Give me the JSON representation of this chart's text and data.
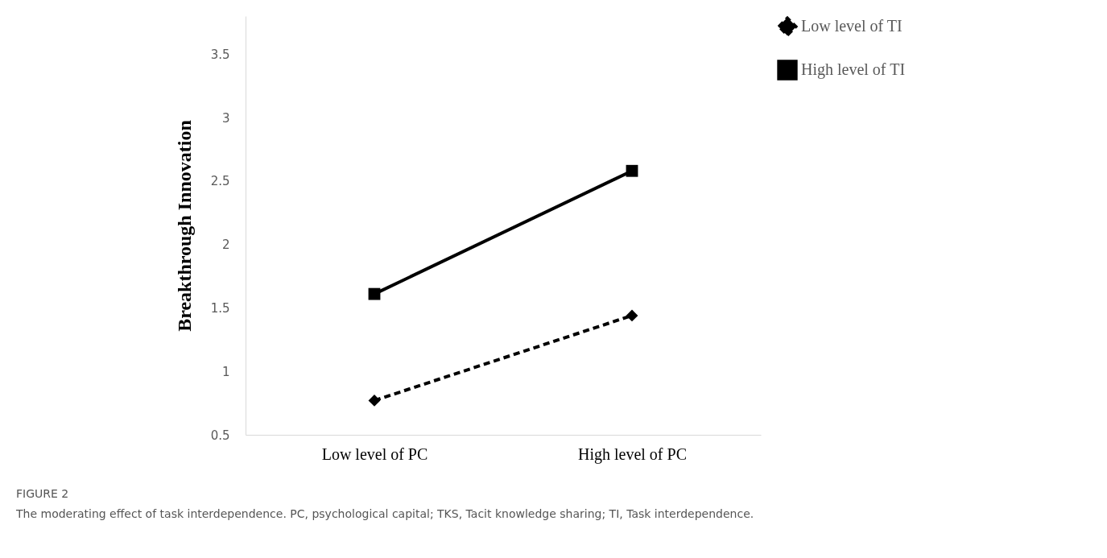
{
  "chart_data": {
    "type": "line",
    "ylabel": "Breakthrough Innovation",
    "categories": [
      "Low level of PC",
      "High level of PC"
    ],
    "series": [
      {
        "name": "Low level of TI",
        "color": "#000000",
        "values": [
          0.77,
          1.44
        ],
        "marker": "diamond",
        "line_style": "dashed"
      },
      {
        "name": "High level of TI",
        "color": "#000000",
        "values": [
          1.61,
          2.58
        ],
        "marker": "square",
        "line_style": "solid"
      }
    ],
    "ylim": [
      0.5,
      3.8
    ],
    "yticks": [
      0.5,
      1,
      1.5,
      2,
      2.5,
      3,
      3.5
    ],
    "grid": false,
    "legend": "right",
    "annotations": [
      "FIGURE 2",
      "The moderating effect of task interdependence. PC, psychological capital; TKS, Tacit knowledge sharing; TI, Task interdependence."
    ]
  }
}
